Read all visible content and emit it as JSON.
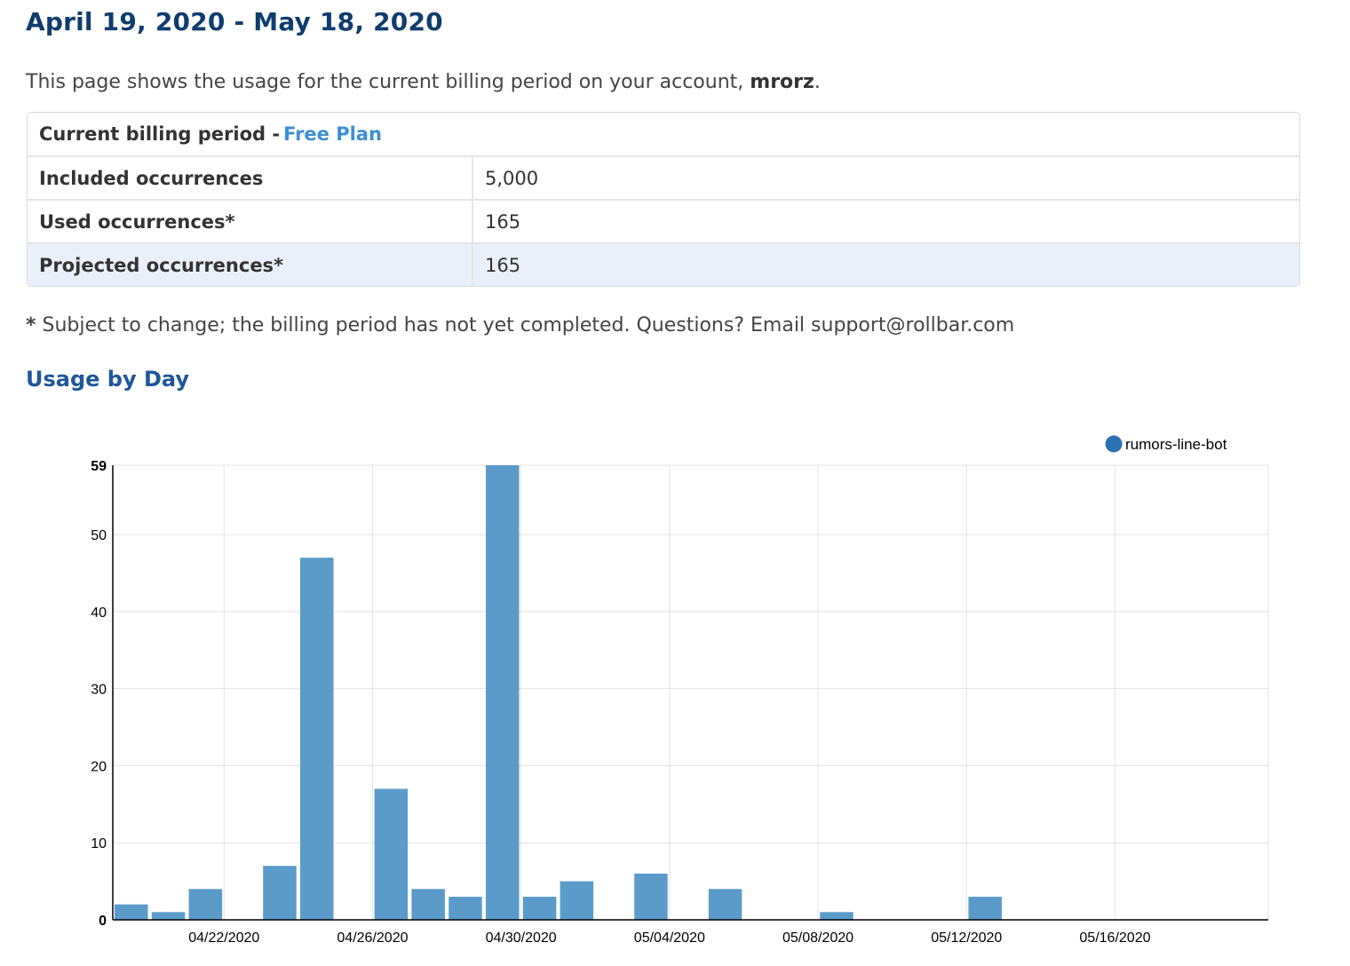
{
  "header": {
    "title": "April 19, 2020 - May 18, 2020",
    "intro_prefix": "This page shows the usage for the current billing period on your account,",
    "account": "mrorz",
    "intro_suffix": "."
  },
  "billing": {
    "header_label": "Current billing period -",
    "plan_link": "Free Plan",
    "rows": [
      {
        "label": "Included occurrences",
        "value": "5,000"
      },
      {
        "label": "Used occurrences*",
        "value": "165"
      },
      {
        "label": "Projected occurrences*",
        "value": "165"
      }
    ]
  },
  "footnote": {
    "star": "*",
    "text": "Subject to change; the billing period has not yet completed. Questions? Email support@rollbar.com"
  },
  "usage_section": {
    "title": "Usage by Day"
  },
  "colors": {
    "bar": "#5b9bc9",
    "legend_dot": "#2a72b5",
    "grid": "#e3e3e3",
    "title": "#0f3d6e",
    "section_title": "#1e5799",
    "link": "#3d8fd6"
  },
  "chart_data": {
    "type": "bar",
    "legend_position": "top-right",
    "grid": true,
    "series": [
      {
        "name": "rumors-line-bot",
        "values": [
          2,
          1,
          4,
          0,
          7,
          47,
          0,
          17,
          4,
          3,
          59,
          3,
          5,
          0,
          6,
          0,
          4,
          0,
          0,
          1,
          0,
          0,
          0,
          3,
          0,
          0,
          0,
          0,
          0,
          0
        ]
      }
    ],
    "categories": [
      "04/19/2020",
      "04/20/2020",
      "04/21/2020",
      "04/22/2020",
      "04/23/2020",
      "04/24/2020",
      "04/25/2020",
      "04/26/2020",
      "04/27/2020",
      "04/28/2020",
      "04/29/2020",
      "04/30/2020",
      "05/01/2020",
      "05/02/2020",
      "05/03/2020",
      "05/04/2020",
      "05/05/2020",
      "05/06/2020",
      "05/07/2020",
      "05/08/2020",
      "05/09/2020",
      "05/10/2020",
      "05/11/2020",
      "05/12/2020",
      "05/13/2020",
      "05/14/2020",
      "05/15/2020",
      "05/16/2020",
      "05/17/2020",
      "05/18/2020"
    ],
    "x_tick_labels": [
      "04/22/2020",
      "04/26/2020",
      "04/30/2020",
      "05/04/2020",
      "05/08/2020",
      "05/12/2020",
      "05/16/2020"
    ],
    "y_tick_labels": [
      "0",
      "10",
      "20",
      "30",
      "40",
      "50",
      "59"
    ],
    "ylim": [
      0,
      59
    ]
  }
}
